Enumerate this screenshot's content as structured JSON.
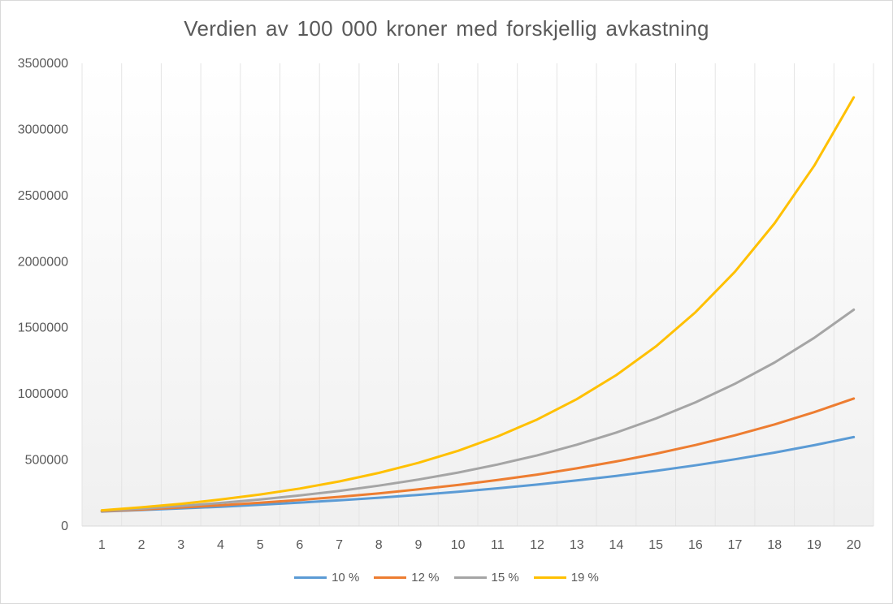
{
  "chart_data": {
    "type": "line",
    "title": "Verdien av 100 000 kroner med forskjellig avkastning",
    "xlabel": "",
    "ylabel": "",
    "categories": [
      "1",
      "2",
      "3",
      "4",
      "5",
      "6",
      "7",
      "8",
      "9",
      "10",
      "11",
      "12",
      "13",
      "14",
      "15",
      "16",
      "17",
      "18",
      "19",
      "20"
    ],
    "ylim": [
      0,
      3500000
    ],
    "yticks": [
      0,
      500000,
      1000000,
      1500000,
      2000000,
      2500000,
      3000000,
      3500000
    ],
    "ytick_labels": [
      "0",
      "500000",
      "1000000",
      "1500000",
      "2000000",
      "2500000",
      "3000000",
      "3500000"
    ],
    "grid": "vertical category lines",
    "legend_position": "bottom",
    "series": [
      {
        "name": "10 %",
        "color": "#5b9bd5",
        "values": [
          110000,
          121000,
          133100,
          146410,
          161051,
          177156,
          194872,
          214359,
          235795,
          259374,
          285312,
          313843,
          345227,
          379750,
          417725,
          459497,
          505447,
          555992,
          611591,
          672750
        ]
      },
      {
        "name": "12 %",
        "color": "#ed7d31",
        "values": [
          112000,
          125440,
          140493,
          157352,
          176234,
          197382,
          221068,
          247596,
          277308,
          310585,
          347855,
          389598,
          436349,
          488711,
          547357,
          613039,
          686604,
          768997,
          861276,
          964629
        ]
      },
      {
        "name": "15 %",
        "color": "#a5a5a5",
        "values": [
          115000,
          132250,
          152088,
          174901,
          201136,
          231306,
          266002,
          305902,
          351788,
          404556,
          465239,
          535025,
          615279,
          707571,
          813706,
          935762,
          1076126,
          1237545,
          1423177,
          1636654
        ]
      },
      {
        "name": "19 %",
        "color": "#ffc000",
        "values": [
          119000,
          141610,
          168516,
          200534,
          238635,
          283976,
          337932,
          402139,
          478545,
          569468,
          677667,
          806424,
          959645,
          1141977,
          1358953,
          1617154,
          1924413,
          2290052,
          2725162,
          3242943
        ]
      }
    ]
  }
}
